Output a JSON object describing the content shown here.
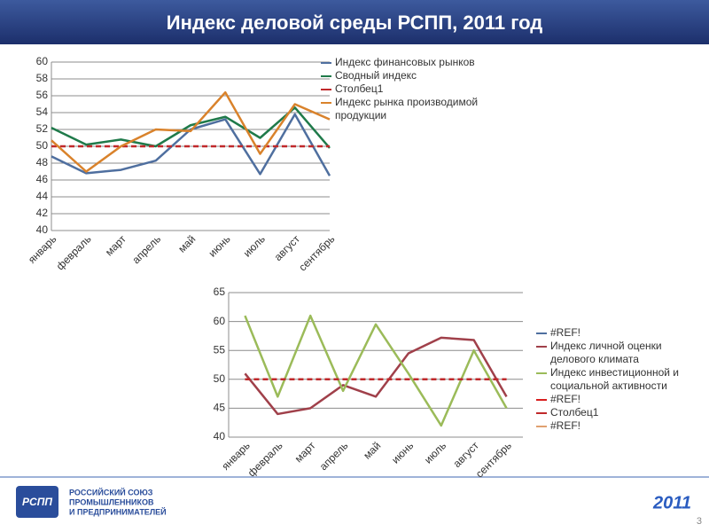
{
  "slide": {
    "title": "Индекс деловой среды РСПП, 2011 год",
    "logo_text": "РСПП",
    "org_lines": [
      "РОССИЙСКИЙ СОЮЗ",
      "ПРОМЫШЛЕННИКОВ",
      "И ПРЕДПРИНИМАТЕЛЕЙ"
    ],
    "year": "2011",
    "page_number": "3"
  },
  "chart_data": [
    {
      "type": "line",
      "categories": [
        "январь",
        "февраль",
        "март",
        "апрель",
        "май",
        "июнь",
        "июль",
        "август",
        "сентябрь"
      ],
      "ylim": [
        40,
        60
      ],
      "yticks": [
        40,
        42,
        44,
        46,
        48,
        50,
        52,
        54,
        56,
        58,
        60
      ],
      "grid": true,
      "series": [
        {
          "name": "Индекс финансовых рынков",
          "color": "#4f6f9f",
          "values": [
            48.8,
            46.8,
            47.2,
            48.3,
            52,
            53.2,
            46.7,
            53.8,
            46.5
          ]
        },
        {
          "name": "Сводный индекс",
          "color": "#1f7a4a",
          "values": [
            52.2,
            50.2,
            50.8,
            50,
            52.5,
            53.5,
            51,
            54.6,
            49.8
          ]
        },
        {
          "name": "Столбец1",
          "color": "#c0292b",
          "dashed": true,
          "values": [
            50,
            50,
            50,
            50,
            50,
            50,
            50,
            50,
            50
          ]
        },
        {
          "name": "Индекс рынка производимой продукции",
          "color": "#d9822b",
          "values": [
            50.7,
            47,
            50,
            52,
            51.8,
            56.4,
            49.1,
            55,
            53.2
          ]
        }
      ]
    },
    {
      "type": "line",
      "categories": [
        "январь",
        "февраль",
        "март",
        "апрель",
        "май",
        "июнь",
        "июль",
        "август",
        "сентябрь"
      ],
      "ylim": [
        40,
        65
      ],
      "yticks": [
        40,
        45,
        50,
        55,
        60,
        65
      ],
      "grid": true,
      "series": [
        {
          "name": "#REF!",
          "color": "#4f6f9f",
          "values": [
            null,
            null,
            null,
            null,
            null,
            null,
            null,
            null,
            null
          ]
        },
        {
          "name": "Индекс личной оценки делового климата",
          "color": "#a0404a",
          "values": [
            51,
            44,
            45,
            49,
            47,
            54.5,
            57.2,
            56.8,
            47
          ]
        },
        {
          "name": "Индекс инвестиционной и социальной активности",
          "color": "#9bbb59",
          "values": [
            61,
            47,
            61,
            48,
            59.5,
            51,
            42,
            55,
            45
          ]
        },
        {
          "name": "#REF!",
          "color": "#d81e1e",
          "values": [
            null,
            null,
            null,
            null,
            null,
            null,
            null,
            null,
            null
          ]
        },
        {
          "name": "Столбец1",
          "color": "#c0292b",
          "dashed": true,
          "values": [
            50,
            50,
            50,
            50,
            50,
            50,
            50,
            50,
            50
          ]
        },
        {
          "name": "#REF!",
          "color": "#e0a070",
          "values": [
            null,
            null,
            null,
            null,
            null,
            null,
            null,
            null,
            null
          ]
        }
      ]
    }
  ]
}
